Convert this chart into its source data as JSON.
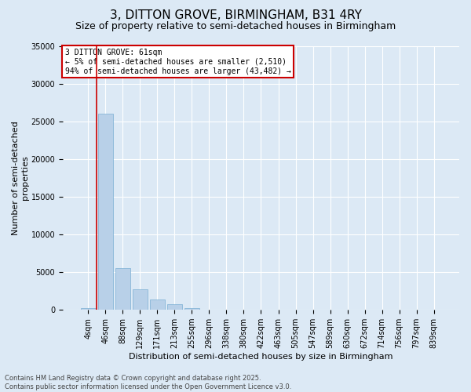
{
  "title": "3, DITTON GROVE, BIRMINGHAM, B31 4RY",
  "subtitle": "Size of property relative to semi-detached houses in Birmingham",
  "xlabel": "Distribution of semi-detached houses by size in Birmingham",
  "ylabel": "Number of semi-detached\nproperties",
  "categories": [
    "4sqm",
    "46sqm",
    "88sqm",
    "129sqm",
    "171sqm",
    "213sqm",
    "255sqm",
    "296sqm",
    "338sqm",
    "380sqm",
    "422sqm",
    "463sqm",
    "505sqm",
    "547sqm",
    "589sqm",
    "630sqm",
    "672sqm",
    "714sqm",
    "756sqm",
    "797sqm",
    "839sqm"
  ],
  "values": [
    200,
    26000,
    5500,
    2700,
    1400,
    700,
    200,
    0,
    0,
    0,
    0,
    0,
    0,
    0,
    0,
    0,
    0,
    0,
    0,
    0,
    0
  ],
  "bar_color": "#b8d0e8",
  "bar_edge_color": "#7aafd4",
  "vline_color": "#cc0000",
  "vline_x": 0.5,
  "background_color": "#dce9f5",
  "plot_bg_color": "#dce9f5",
  "annotation_title": "3 DITTON GROVE: 61sqm",
  "annotation_line1": "← 5% of semi-detached houses are smaller (2,510)",
  "annotation_line2": "94% of semi-detached houses are larger (43,482) →",
  "annotation_box_color": "#ffffff",
  "annotation_border_color": "#cc0000",
  "footer_line1": "Contains HM Land Registry data © Crown copyright and database right 2025.",
  "footer_line2": "Contains public sector information licensed under the Open Government Licence v3.0.",
  "ylim": [
    0,
    35000
  ],
  "yticks": [
    0,
    5000,
    10000,
    15000,
    20000,
    25000,
    30000,
    35000
  ],
  "title_fontsize": 11,
  "subtitle_fontsize": 9,
  "axis_label_fontsize": 8,
  "tick_fontsize": 7,
  "annotation_fontsize": 7,
  "footer_fontsize": 6
}
